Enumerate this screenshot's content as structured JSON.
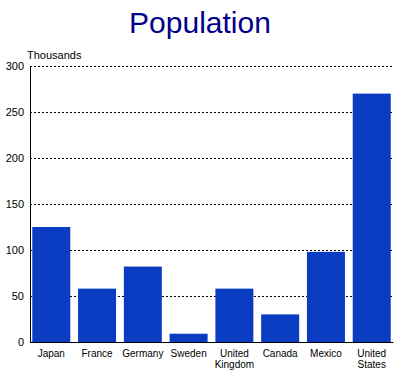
{
  "chart_data": {
    "type": "bar",
    "title": "Population",
    "ylabel": "Thousands",
    "categories": [
      "Japan",
      "France",
      "Germany",
      "Sweden",
      "United Kingdom",
      "Canada",
      "Mexico",
      "United States"
    ],
    "values": [
      125,
      58,
      82,
      9,
      58,
      30,
      98,
      270
    ],
    "color": "#0a3cc2",
    "ylim": [
      0,
      300
    ],
    "yticks": [
      0,
      50,
      100,
      150,
      200,
      250,
      300
    ],
    "grid": true
  }
}
